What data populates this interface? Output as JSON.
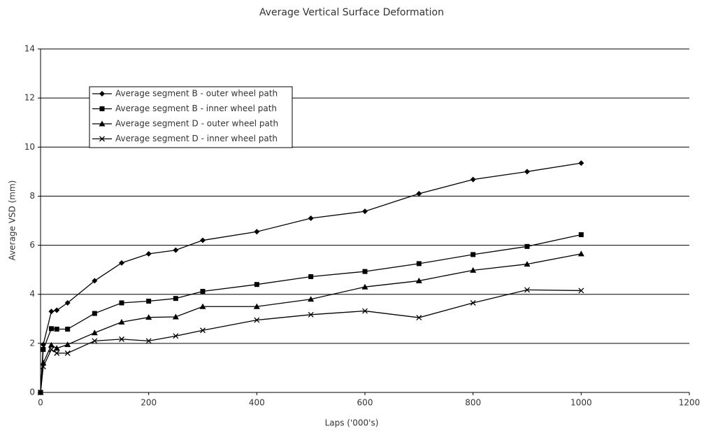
{
  "chart_data": {
    "type": "line",
    "title": "Average Vertical Surface Deformation",
    "xlabel": "Laps ('000's)",
    "ylabel": "Average VSD (mm)",
    "x": [
      0,
      5,
      20,
      30,
      50,
      100,
      150,
      200,
      250,
      300,
      400,
      500,
      600,
      700,
      800,
      900,
      1000
    ],
    "series": [
      {
        "name": "Average segment B - outer wheel path",
        "color": "#000000",
        "marker": "diamond",
        "values": [
          0,
          1.95,
          3.3,
          3.35,
          3.65,
          4.55,
          5.28,
          5.65,
          5.8,
          6.2,
          6.55,
          7.1,
          7.38,
          8.1,
          8.68,
          9.0,
          9.35
        ]
      },
      {
        "name": "Average segment B - inner wheel path",
        "color": "#000000",
        "marker": "square",
        "values": [
          0,
          1.75,
          2.6,
          2.58,
          2.58,
          3.22,
          3.65,
          3.72,
          3.83,
          4.12,
          4.4,
          4.72,
          4.93,
          5.25,
          5.62,
          5.95,
          6.43
        ]
      },
      {
        "name": "Average segment D - outer wheel path",
        "color": "#000000",
        "marker": "triangle",
        "values": [
          0,
          1.2,
          1.93,
          1.8,
          1.95,
          2.43,
          2.87,
          3.06,
          3.08,
          3.5,
          3.5,
          3.8,
          4.3,
          4.55,
          4.98,
          5.23,
          5.65
        ]
      },
      {
        "name": "Average segment D - inner wheel path",
        "color": "#000000",
        "marker": "x",
        "values": [
          0,
          1.05,
          1.75,
          1.6,
          1.6,
          2.1,
          2.17,
          2.1,
          2.3,
          2.53,
          2.95,
          3.17,
          3.32,
          3.05,
          3.65,
          4.18,
          4.15
        ]
      }
    ],
    "xlim": [
      0,
      1200
    ],
    "xticks": [
      0,
      200,
      400,
      600,
      800,
      1000,
      1200
    ],
    "ylim": [
      0,
      14
    ],
    "yticks": [
      0,
      2,
      4,
      6,
      8,
      10,
      12,
      14
    ],
    "grid": true,
    "legend": "upper-left"
  }
}
